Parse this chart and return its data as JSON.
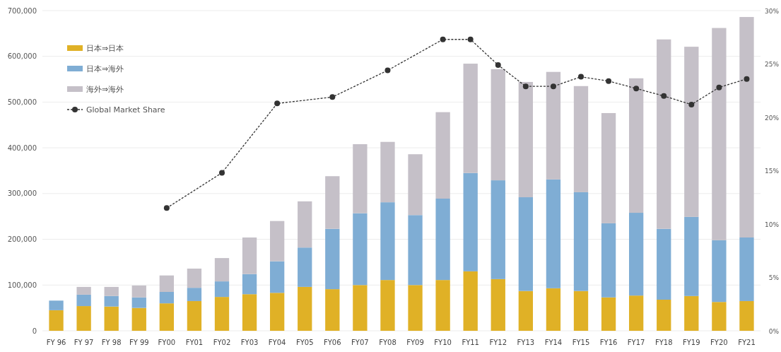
{
  "chart_data": {
    "type": "bar",
    "stacked": true,
    "categories": [
      "FY 96",
      "FY 97",
      "FY 98",
      "FY 99",
      "FY00",
      "FY01",
      "FY02",
      "FY03",
      "FY04",
      "FY05",
      "FY06",
      "FY07",
      "FY08",
      "FY09",
      "FY10",
      "FY11",
      "FY12",
      "FY13",
      "FY14",
      "FY15",
      "FY16",
      "FY17",
      "FY18",
      "FY19",
      "FY20",
      "FY21"
    ],
    "series": [
      {
        "name": "日本⇒日本",
        "color": "#e0b126",
        "values": [
          45000,
          54000,
          53000,
          50000,
          60000,
          65000,
          74000,
          80000,
          83000,
          96000,
          91000,
          100000,
          111000,
          100000,
          111000,
          130000,
          113000,
          87000,
          93000,
          87000,
          73000,
          77000,
          68000,
          76000,
          63000,
          65000
        ]
      },
      {
        "name": "日本⇒海外",
        "color": "#7fadd4",
        "values": [
          21000,
          25000,
          23000,
          23000,
          25000,
          29000,
          34000,
          44000,
          69000,
          86000,
          132000,
          157000,
          170000,
          153000,
          178000,
          215000,
          216000,
          205000,
          238000,
          216000,
          162000,
          181000,
          155000,
          173000,
          135000,
          139000
        ]
      },
      {
        "name": "海外⇒海外",
        "color": "#c5c0c8",
        "values": [
          0,
          17000,
          20000,
          26000,
          36000,
          42000,
          51000,
          80000,
          88000,
          101000,
          115000,
          151000,
          132000,
          133000,
          189000,
          239000,
          243000,
          252000,
          235000,
          232000,
          241000,
          294000,
          414000,
          372000,
          464000,
          482000
        ]
      },
      {
        "name": "Global Market Share",
        "type": "line",
        "axis": "y2",
        "color": "#333333",
        "values": [
          null,
          null,
          null,
          null,
          11.5,
          null,
          14.8,
          null,
          21.3,
          null,
          21.9,
          null,
          24.4,
          null,
          27.3,
          27.3,
          24.9,
          22.9,
          22.9,
          23.8,
          23.4,
          22.7,
          22.0,
          21.2,
          22.8,
          23.6
        ]
      }
    ],
    "ylim": [
      0,
      700000
    ],
    "yticks": [
      0,
      {
        "value": 100000,
        "label": "100,000"
      },
      {
        "value": 200000,
        "label": "200,000"
      },
      {
        "value": 300000,
        "label": "300,000"
      },
      {
        "value": 400000,
        "label": "400,000"
      },
      {
        "value": 500000,
        "label": "500,000"
      },
      {
        "value": 600000,
        "label": "600,000"
      },
      {
        "value": 700000,
        "label": "700,000"
      }
    ],
    "y2lim": [
      0,
      30
    ],
    "y2ticks": [
      {
        "value": 0,
        "label": "0%"
      },
      {
        "value": 5,
        "label": "5%"
      },
      {
        "value": 10,
        "label": "10%"
      },
      {
        "value": 15,
        "label": "15%"
      },
      {
        "value": 20,
        "label": "20%"
      },
      {
        "value": 25,
        "label": "25%"
      },
      {
        "value": 30,
        "label": "30%"
      }
    ],
    "grid": "y",
    "legend": "top left",
    "marker": "circle",
    "line_style": "dashed"
  }
}
